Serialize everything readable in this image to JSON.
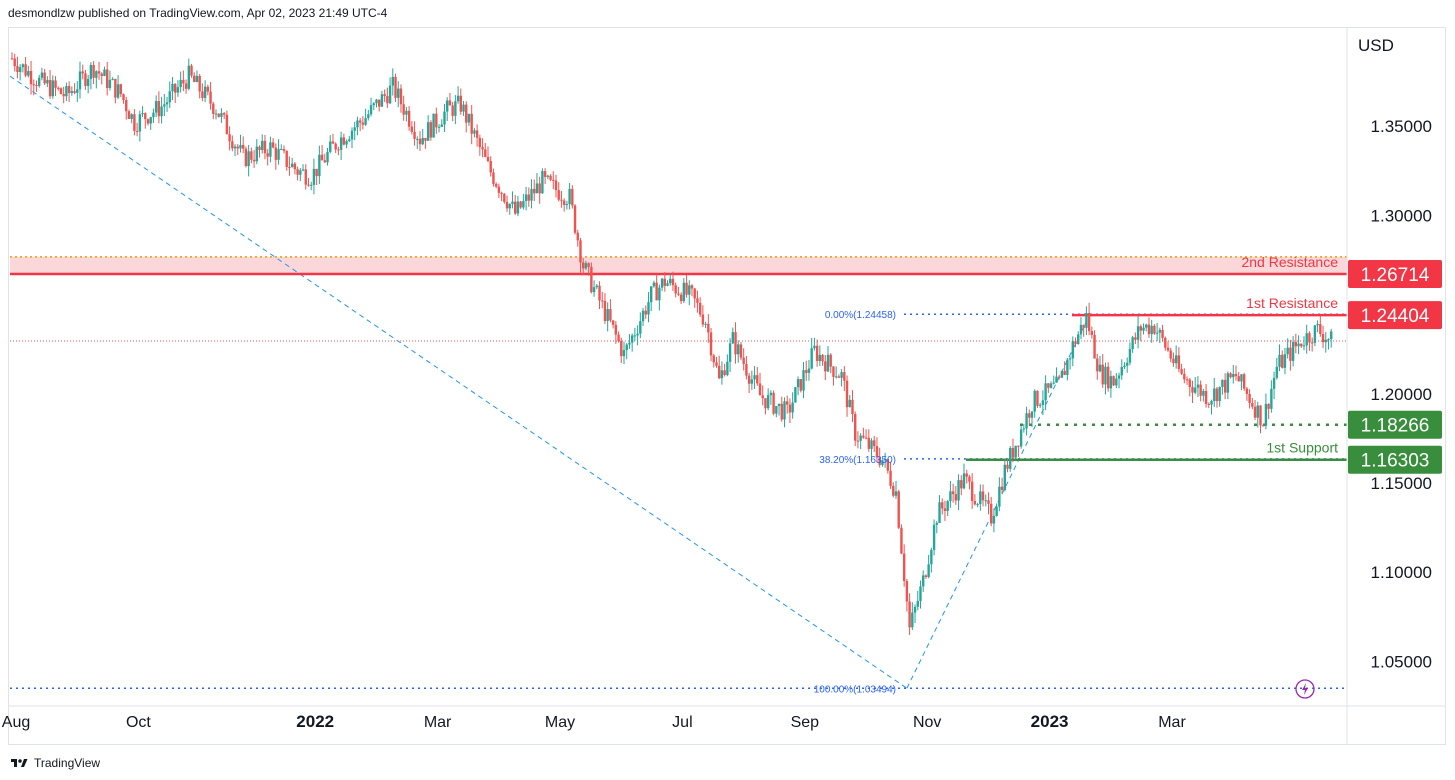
{
  "header": {
    "text": "desmondlzw published on TradingView.com, Apr 02, 2023 21:49 UTC-4"
  },
  "footer": {
    "brand": "TradingView"
  },
  "colors": {
    "up": "#26a69a",
    "down": "#ef5350",
    "resistance": "#f23645",
    "support": "#388e3c",
    "fib": "#2962ff",
    "trend": "#2196f3"
  },
  "chart_data": {
    "type": "candlestick",
    "currency": "USD",
    "ylim": [
      1.025,
      1.405
    ],
    "y_ticks": [
      "1.35000",
      "1.30000",
      "1.20000",
      "1.15000",
      "1.10000",
      "1.05000"
    ],
    "x_tick_labels": [
      "Aug",
      "Oct",
      "2022",
      "Mar",
      "May",
      "Jul",
      "Sep",
      "Nov",
      "2023",
      "Mar"
    ],
    "x_tick_weeks": [
      0,
      9,
      22,
      31,
      40,
      49,
      58,
      67,
      76,
      85
    ],
    "last_price": 1.2296,
    "resistance_zone": [
      1.2671,
      1.2767
    ],
    "levels": [
      {
        "name": "2nd Resistance",
        "price": 1.26714,
        "label": "1.26714",
        "kind": "resistance"
      },
      {
        "name": "1st Resistance",
        "price": 1.24404,
        "label": "1.24404",
        "kind": "resistance"
      },
      {
        "name": "",
        "price": 1.18266,
        "label": "1.18266",
        "kind": "support-dotted"
      },
      {
        "name": "1st Support",
        "price": 1.16303,
        "label": "1.16303",
        "kind": "support"
      }
    ],
    "fib_levels": [
      {
        "label": "0.00%(1.24458)",
        "price": 1.24458
      },
      {
        "label": "38.20%(1.16350)",
        "price": 1.1635
      },
      {
        "label": "100.00%(1.03494)",
        "price": 1.03494
      }
    ],
    "anchor_closes": [
      [
        0,
        1.388
      ],
      [
        2,
        1.375
      ],
      [
        4,
        1.367
      ],
      [
        6,
        1.383
      ],
      [
        8,
        1.368
      ],
      [
        9,
        1.352
      ],
      [
        11,
        1.361
      ],
      [
        13,
        1.378
      ],
      [
        15,
        1.36
      ],
      [
        17,
        1.332
      ],
      [
        19,
        1.338
      ],
      [
        21,
        1.325
      ],
      [
        22,
        1.322
      ],
      [
        24,
        1.342
      ],
      [
        26,
        1.355
      ],
      [
        28,
        1.372
      ],
      [
        30,
        1.343
      ],
      [
        32,
        1.359
      ],
      [
        33,
        1.362
      ],
      [
        35,
        1.327
      ],
      [
        37,
        1.301
      ],
      [
        39,
        1.319
      ],
      [
        41,
        1.31
      ],
      [
        42,
        1.272
      ],
      [
        44,
        1.239
      ],
      [
        45,
        1.222
      ],
      [
        47,
        1.255
      ],
      [
        48,
        1.263
      ],
      [
        50,
        1.254
      ],
      [
        51,
        1.241
      ],
      [
        52,
        1.207
      ],
      [
        53,
        1.23
      ],
      [
        55,
        1.199
      ],
      [
        57,
        1.189
      ],
      [
        59,
        1.224
      ],
      [
        61,
        1.21
      ],
      [
        62,
        1.178
      ],
      [
        64,
        1.163
      ],
      [
        65,
        1.145
      ],
      [
        66,
        1.068
      ],
      [
        67,
        1.095
      ],
      [
        68,
        1.132
      ],
      [
        70,
        1.152
      ],
      [
        72,
        1.131
      ],
      [
        73,
        1.157
      ],
      [
        75,
        1.195
      ],
      [
        77,
        1.205
      ],
      [
        78,
        1.227
      ],
      [
        79,
        1.243
      ],
      [
        80,
        1.212
      ],
      [
        81,
        1.207
      ],
      [
        83,
        1.237
      ],
      [
        84,
        1.238
      ],
      [
        86,
        1.21
      ],
      [
        88,
        1.198
      ],
      [
        90,
        1.21
      ],
      [
        92,
        1.185
      ],
      [
        93,
        1.215
      ],
      [
        95,
        1.231
      ],
      [
        96,
        1.236
      ],
      [
        97,
        1.2296
      ]
    ]
  }
}
